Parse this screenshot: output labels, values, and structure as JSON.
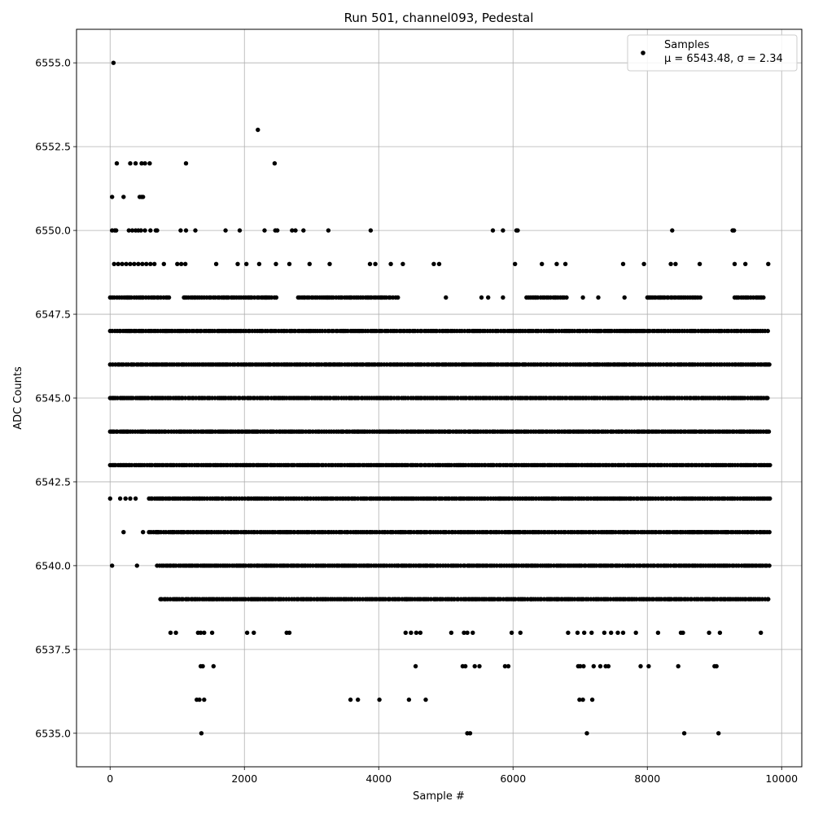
{
  "chart_data": {
    "type": "scatter",
    "title": "Run 501, channel093, Pedestal",
    "xlabel": "Sample #",
    "ylabel": "ADC Counts",
    "xlim": [
      -500,
      10300
    ],
    "ylim": [
      6534.0,
      6556.0
    ],
    "xticks": [
      0,
      2000,
      4000,
      6000,
      8000,
      10000
    ],
    "xtick_labels": [
      "0",
      "2000",
      "4000",
      "6000",
      "8000",
      "10000"
    ],
    "yticks": [
      6535.0,
      6537.5,
      6540.0,
      6542.5,
      6545.0,
      6547.5,
      6550.0,
      6552.5,
      6555.0
    ],
    "ytick_labels": [
      "6535.0",
      "6537.5",
      "6540.0",
      "6542.5",
      "6545.0",
      "6547.5",
      "6550.0",
      "6552.5",
      "6555.0"
    ],
    "grid": true,
    "legend": {
      "location": "upper right",
      "entries": [
        {
          "name": "Samples",
          "stats": "μ = 6543.48, σ = 2.34"
        }
      ]
    },
    "series": [
      {
        "name": "Samples",
        "color": "#000000",
        "marker": "circle",
        "mean": 6543.48,
        "std": 2.34,
        "n_samples": 9830,
        "dense_bands": [
          {
            "y": 6548,
            "x_ranges": [
              [
                0,
                900
              ],
              [
                1100,
                2500
              ],
              [
                2800,
                4300
              ],
              [
                6200,
                6800
              ],
              [
                8000,
                8800
              ],
              [
                9300,
                9750
              ]
            ]
          },
          {
            "y": 6547,
            "x_ranges": [
              [
                0,
                9830
              ]
            ]
          },
          {
            "y": 6546,
            "x_ranges": [
              [
                0,
                9830
              ]
            ]
          },
          {
            "y": 6545,
            "x_ranges": [
              [
                0,
                9830
              ]
            ]
          },
          {
            "y": 6544,
            "x_ranges": [
              [
                0,
                9830
              ]
            ]
          },
          {
            "y": 6543,
            "x_ranges": [
              [
                0,
                9830
              ]
            ]
          },
          {
            "y": 6542,
            "x_ranges": [
              [
                580,
                9830
              ]
            ]
          },
          {
            "y": 6541,
            "x_ranges": [
              [
                580,
                9830
              ]
            ]
          },
          {
            "y": 6540,
            "x_ranges": [
              [
                700,
                9830
              ]
            ]
          },
          {
            "y": 6539,
            "x_ranges": [
              [
                750,
                9800
              ]
            ]
          }
        ],
        "points": [
          [
            50,
            6555
          ],
          [
            2200,
            6553
          ],
          [
            100,
            6552
          ],
          [
            300,
            6552
          ],
          [
            380,
            6552
          ],
          [
            470,
            6552
          ],
          [
            520,
            6552
          ],
          [
            590,
            6552
          ],
          [
            1130,
            6552
          ],
          [
            2450,
            6552
          ],
          [
            30,
            6551
          ],
          [
            200,
            6551
          ],
          [
            440,
            6551
          ],
          [
            470,
            6551
          ],
          [
            490,
            6551
          ],
          [
            30,
            6550
          ],
          [
            70,
            6550
          ],
          [
            90,
            6550
          ],
          [
            280,
            6550
          ],
          [
            330,
            6550
          ],
          [
            380,
            6550
          ],
          [
            420,
            6550
          ],
          [
            460,
            6550
          ],
          [
            520,
            6550
          ],
          [
            600,
            6550
          ],
          [
            680,
            6550
          ],
          [
            700,
            6550
          ],
          [
            1050,
            6550
          ],
          [
            1130,
            6550
          ],
          [
            1270,
            6550
          ],
          [
            1720,
            6550
          ],
          [
            1930,
            6550
          ],
          [
            2300,
            6550
          ],
          [
            2460,
            6550
          ],
          [
            2490,
            6550
          ],
          [
            2710,
            6550
          ],
          [
            2760,
            6550
          ],
          [
            2880,
            6550
          ],
          [
            3250,
            6550
          ],
          [
            3880,
            6550
          ],
          [
            5700,
            6550
          ],
          [
            5850,
            6550
          ],
          [
            6050,
            6550
          ],
          [
            6070,
            6550
          ],
          [
            8370,
            6550
          ],
          [
            9270,
            6550
          ],
          [
            9290,
            6550
          ],
          [
            60,
            6549
          ],
          [
            120,
            6549
          ],
          [
            180,
            6549
          ],
          [
            240,
            6549
          ],
          [
            300,
            6549
          ],
          [
            360,
            6549
          ],
          [
            420,
            6549
          ],
          [
            480,
            6549
          ],
          [
            540,
            6549
          ],
          [
            600,
            6549
          ],
          [
            660,
            6549
          ],
          [
            800,
            6549
          ],
          [
            1000,
            6549
          ],
          [
            1060,
            6549
          ],
          [
            1120,
            6549
          ],
          [
            1580,
            6549
          ],
          [
            1900,
            6549
          ],
          [
            2030,
            6549
          ],
          [
            2220,
            6549
          ],
          [
            2470,
            6549
          ],
          [
            2670,
            6549
          ],
          [
            2970,
            6549
          ],
          [
            3270,
            6549
          ],
          [
            3870,
            6549
          ],
          [
            3950,
            6549
          ],
          [
            4180,
            6549
          ],
          [
            4360,
            6549
          ],
          [
            4820,
            6549
          ],
          [
            4900,
            6549
          ],
          [
            6030,
            6549
          ],
          [
            6430,
            6549
          ],
          [
            6650,
            6549
          ],
          [
            6780,
            6549
          ],
          [
            7640,
            6549
          ],
          [
            7950,
            6549
          ],
          [
            8350,
            6549
          ],
          [
            8420,
            6549
          ],
          [
            8780,
            6549
          ],
          [
            9300,
            6549
          ],
          [
            9460,
            6549
          ],
          [
            9800,
            6549
          ],
          [
            5000,
            6548
          ],
          [
            5530,
            6548
          ],
          [
            5630,
            6548
          ],
          [
            5850,
            6548
          ],
          [
            7040,
            6548
          ],
          [
            7270,
            6548
          ],
          [
            7660,
            6548
          ],
          [
            9480,
            6548
          ],
          [
            7260,
            6547
          ],
          [
            7450,
            6547
          ],
          [
            7660,
            6547
          ],
          [
            5450,
            6546
          ],
          [
            5660,
            6546
          ],
          [
            7130,
            6546
          ],
          [
            7260,
            6546
          ],
          [
            7520,
            6546
          ],
          [
            7040,
            6545
          ],
          [
            7200,
            6545
          ],
          [
            0,
            6542
          ],
          [
            150,
            6542
          ],
          [
            230,
            6542
          ],
          [
            300,
            6542
          ],
          [
            380,
            6542
          ],
          [
            200,
            6541
          ],
          [
            490,
            6541
          ],
          [
            30,
            6540
          ],
          [
            400,
            6540
          ],
          [
            1880,
            6540
          ],
          [
            1990,
            6540
          ],
          [
            2200,
            6540
          ],
          [
            2330,
            6540
          ],
          [
            2400,
            6540
          ],
          [
            2570,
            6540
          ],
          [
            3830,
            6540
          ],
          [
            4290,
            6540
          ],
          [
            4450,
            6540
          ],
          [
            3160,
            6539
          ],
          [
            4150,
            6539
          ],
          [
            4420,
            6539
          ],
          [
            5080,
            6539
          ],
          [
            5120,
            6539
          ],
          [
            5450,
            6539
          ],
          [
            5710,
            6539
          ],
          [
            6270,
            6539
          ],
          [
            6660,
            6539
          ],
          [
            8330,
            6539
          ],
          [
            8490,
            6539
          ],
          [
            9160,
            6539
          ],
          [
            9800,
            6539
          ],
          [
            900,
            6538
          ],
          [
            980,
            6538
          ],
          [
            1310,
            6538
          ],
          [
            1350,
            6538
          ],
          [
            1400,
            6538
          ],
          [
            1520,
            6538
          ],
          [
            2040,
            6538
          ],
          [
            2140,
            6538
          ],
          [
            2630,
            6538
          ],
          [
            2670,
            6538
          ],
          [
            4400,
            6538
          ],
          [
            4480,
            6538
          ],
          [
            4560,
            6538
          ],
          [
            4620,
            6538
          ],
          [
            5080,
            6538
          ],
          [
            5270,
            6538
          ],
          [
            5320,
            6538
          ],
          [
            5400,
            6538
          ],
          [
            5980,
            6538
          ],
          [
            6110,
            6538
          ],
          [
            6820,
            6538
          ],
          [
            6960,
            6538
          ],
          [
            7060,
            6538
          ],
          [
            7170,
            6538
          ],
          [
            7360,
            6538
          ],
          [
            7460,
            6538
          ],
          [
            7560,
            6538
          ],
          [
            7640,
            6538
          ],
          [
            7830,
            6538
          ],
          [
            8160,
            6538
          ],
          [
            8500,
            6538
          ],
          [
            8530,
            6538
          ],
          [
            8920,
            6538
          ],
          [
            9080,
            6538
          ],
          [
            9690,
            6538
          ],
          [
            1350,
            6537
          ],
          [
            1380,
            6537
          ],
          [
            1540,
            6537
          ],
          [
            4550,
            6537
          ],
          [
            5250,
            6537
          ],
          [
            5290,
            6537
          ],
          [
            5430,
            6537
          ],
          [
            5500,
            6537
          ],
          [
            5880,
            6537
          ],
          [
            5930,
            6537
          ],
          [
            6970,
            6537
          ],
          [
            7000,
            6537
          ],
          [
            7050,
            6537
          ],
          [
            7200,
            6537
          ],
          [
            7300,
            6537
          ],
          [
            7380,
            6537
          ],
          [
            7420,
            6537
          ],
          [
            7900,
            6537
          ],
          [
            8020,
            6537
          ],
          [
            8460,
            6537
          ],
          [
            9000,
            6537
          ],
          [
            9030,
            6537
          ],
          [
            1290,
            6536
          ],
          [
            1330,
            6536
          ],
          [
            1400,
            6536
          ],
          [
            3580,
            6536
          ],
          [
            3690,
            6536
          ],
          [
            4010,
            6536
          ],
          [
            4450,
            6536
          ],
          [
            4700,
            6536
          ],
          [
            6990,
            6536
          ],
          [
            7040,
            6536
          ],
          [
            7180,
            6536
          ],
          [
            1360,
            6535
          ],
          [
            5320,
            6535
          ],
          [
            5360,
            6535
          ],
          [
            7100,
            6535
          ],
          [
            8550,
            6535
          ],
          [
            9060,
            6535
          ]
        ]
      }
    ]
  }
}
